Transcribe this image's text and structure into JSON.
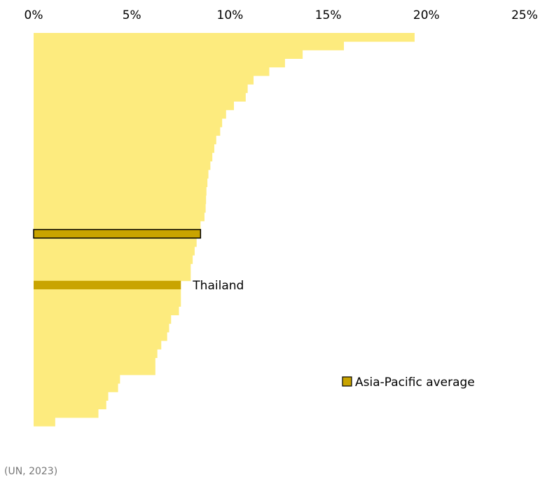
{
  "chart_data": {
    "type": "bar",
    "orientation": "horizontal",
    "xlim": [
      0,
      25
    ],
    "x_ticks": [
      "0%",
      "5%",
      "10%",
      "15%",
      "20%",
      "25%"
    ],
    "x_tick_values": [
      0,
      5,
      10,
      15,
      20,
      25
    ],
    "x_axis_position": "top",
    "grid": false,
    "values": [
      19.4,
      15.8,
      13.7,
      12.8,
      12.0,
      11.2,
      10.9,
      10.8,
      10.2,
      9.8,
      9.6,
      9.5,
      9.3,
      9.2,
      9.1,
      9.0,
      8.9,
      8.85,
      8.8,
      8.78,
      8.76,
      8.7,
      8.5,
      8.3,
      8.2,
      8.1,
      8.0,
      8.0,
      7.5,
      7.5,
      7.4,
      7.0,
      6.9,
      6.8,
      6.5,
      6.3,
      6.2,
      6.2,
      4.4,
      4.3,
      3.8,
      3.7,
      3.3,
      1.1
    ],
    "highlight_values": [
      {
        "label": "Asia-Pacific average",
        "value": 8.5,
        "after_index": 22
      },
      {
        "label": "Thailand",
        "value": 7.5,
        "after_index": 27
      }
    ],
    "annotations": [
      {
        "text": "Thailand"
      }
    ],
    "legend": {
      "label": "Asia-Pacific average",
      "placement": "bottom-right"
    },
    "source": "(UN, 2023)",
    "colors": {
      "bar": "#FDEB7E",
      "average_fill": "#C9A400",
      "average_stroke": "#000000",
      "thailand": "#C9A400"
    }
  }
}
